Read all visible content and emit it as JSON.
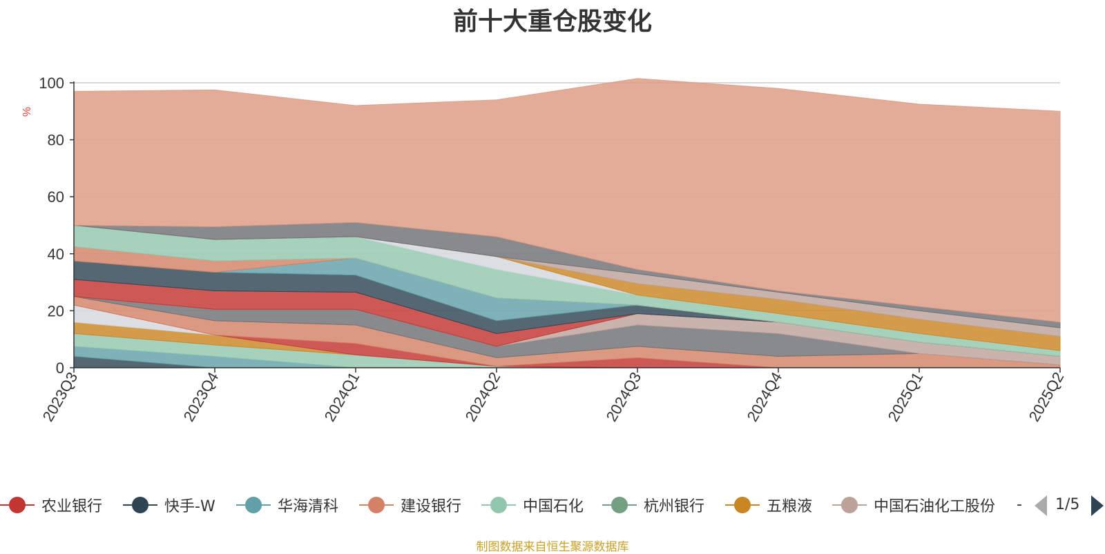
{
  "chart_data": {
    "type": "area",
    "title": "前十大重仓股变化",
    "ylabel": "%",
    "xlabel": "",
    "ylim": [
      0,
      100
    ],
    "yticks": [
      0,
      20,
      40,
      60,
      80,
      100
    ],
    "stacked": true,
    "grid": true,
    "legend_position": "bottom",
    "categories": [
      "2023Q3",
      "2023Q4",
      "2024Q1",
      "2024Q2",
      "2024Q3",
      "2024Q4",
      "2025Q1",
      "2025Q2"
    ],
    "series": [
      {
        "name": "",
        "color": "#2f4554",
        "values": [
          4.0,
          0,
          0,
          0,
          0,
          0,
          0,
          0
        ]
      },
      {
        "name": "",
        "color": "#61a0a8",
        "values": [
          3.5,
          4.0,
          0,
          0,
          0,
          0,
          0,
          0
        ]
      },
      {
        "name": "",
        "color": "#91c7ae",
        "values": [
          4.5,
          4.0,
          4.5,
          0.5,
          0,
          0,
          0,
          0
        ]
      },
      {
        "name": "",
        "color": "#ca8622",
        "values": [
          4.0,
          3.5,
          0,
          0,
          0,
          0,
          0,
          0
        ]
      },
      {
        "name": "",
        "color": "#d3d7dd",
        "values": [
          6.0,
          0,
          0,
          0,
          0,
          0,
          0,
          0
        ]
      },
      {
        "name": "",
        "color": "#c23531",
        "values": [
          0,
          0,
          4.0,
          0,
          3.5,
          0,
          0,
          0
        ]
      },
      {
        "name": "",
        "color": "#d48265",
        "values": [
          3.0,
          5.0,
          6.5,
          3.0,
          4.0,
          4.0,
          5.0,
          1.0
        ]
      },
      {
        "name": "",
        "color": "#6e7074",
        "values": [
          0,
          4.0,
          5.5,
          4.0,
          7.5,
          8.0,
          0,
          0
        ]
      },
      {
        "name": "",
        "color": "#bda29a",
        "values": [
          0,
          0,
          0,
          0,
          4.0,
          4.0,
          4.0,
          3.0
        ]
      },
      {
        "name": "",
        "color": "#c23531",
        "values": [
          6.0,
          6.5,
          6.0,
          4.5,
          0,
          0,
          0,
          0
        ]
      },
      {
        "name": "",
        "color": "#2f4554",
        "values": [
          6.5,
          6.5,
          6.0,
          4.5,
          3.0,
          0,
          0,
          0
        ]
      },
      {
        "name": "",
        "color": "#61a0a8",
        "values": [
          0,
          0,
          6.0,
          8.0,
          0,
          0,
          0,
          0
        ]
      },
      {
        "name": "",
        "color": "#d48265",
        "values": [
          5.0,
          4.0,
          0,
          0,
          0,
          0,
          0,
          0
        ]
      },
      {
        "name": "",
        "color": "#91c7ae",
        "values": [
          7.5,
          7.5,
          7.5,
          10.0,
          3.5,
          3.0,
          3.0,
          2.0
        ]
      },
      {
        "name": "",
        "color": "#d3d7dd",
        "values": [
          0,
          0,
          0,
          4.5,
          0,
          0,
          0,
          0
        ]
      },
      {
        "name": "",
        "color": "#ca8622",
        "values": [
          0,
          0,
          0,
          0,
          4.0,
          5.0,
          5.0,
          5.0
        ]
      },
      {
        "name": "",
        "color": "#bda29a",
        "values": [
          0,
          0,
          0,
          0,
          3.5,
          2.5,
          3.0,
          3.0
        ]
      },
      {
        "name": "",
        "color": "#6e7074",
        "values": [
          0,
          4.5,
          5.0,
          7.0,
          1.5,
          0.5,
          1.5,
          2.0
        ]
      },
      {
        "name": "",
        "color": "#dd9a82",
        "values": [
          47.0,
          48.0,
          41.0,
          48.0,
          67.0,
          71.0,
          71.0,
          74.0
        ]
      }
    ]
  },
  "legend": {
    "items": [
      {
        "label": "农业银行",
        "color": "#c23531"
      },
      {
        "label": "快手-W",
        "color": "#2f4554"
      },
      {
        "label": "华海清科",
        "color": "#61a0a8"
      },
      {
        "label": "建设银行",
        "color": "#d48265"
      },
      {
        "label": "中国石化",
        "color": "#91c7ae"
      },
      {
        "label": "杭州银行",
        "color": "#749f83"
      },
      {
        "label": "五粮液",
        "color": "#ca8622"
      },
      {
        "label": "中国石油化工股份",
        "color": "#bda29a"
      }
    ],
    "more": "-",
    "page": "1/5"
  },
  "source_note": "制图数据来自恒生聚源数据库"
}
